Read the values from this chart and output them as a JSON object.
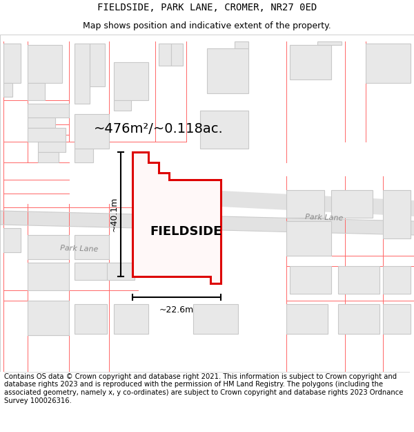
{
  "title": "FIELDSIDE, PARK LANE, CROMER, NR27 0ED",
  "subtitle": "Map shows position and indicative extent of the property.",
  "copyright": "Contains OS data © Crown copyright and database right 2021. This information is subject to Crown copyright and database rights 2023 and is reproduced with the permission of HM Land Registry. The polygons (including the associated geometry, namely x, y co-ordinates) are subject to Crown copyright and database rights 2023 Ordnance Survey 100026316.",
  "area_label": "~476m²/~0.118ac.",
  "height_label": "~40.1m",
  "width_label": "~22.6m",
  "property_label": "FIELDSIDE",
  "street_label": "Park Lane",
  "bg_color": "#ffffff",
  "building_fill": "#e8e8e8",
  "building_edge": "#c8c8c8",
  "red_line": "#ff6666",
  "road_fill": "#e0e0e0",
  "road_edge": "#cccccc",
  "prop_red": "#dd0000",
  "prop_fill": "#ffffff",
  "title_fontsize": 10,
  "subtitle_fontsize": 9,
  "copyright_fontsize": 7.2
}
